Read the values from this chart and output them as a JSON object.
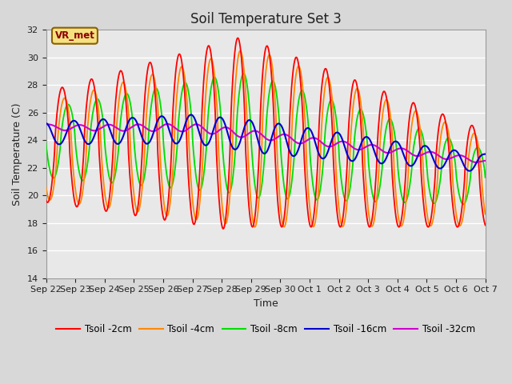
{
  "title": "Soil Temperature Set 3",
  "xlabel": "Time",
  "ylabel": "Soil Temperature (C)",
  "ylim": [
    14,
    32
  ],
  "yticks": [
    14,
    16,
    18,
    20,
    22,
    24,
    26,
    28,
    30,
    32
  ],
  "annotation": "VR_met",
  "series_colors": {
    "2cm": "#ff0000",
    "4cm": "#ff8800",
    "8cm": "#00dd00",
    "16cm": "#0000cc",
    "32cm": "#cc00cc"
  },
  "legend_labels": [
    "Tsoil -2cm",
    "Tsoil -4cm",
    "Tsoil -8cm",
    "Tsoil -16cm",
    "Tsoil -32cm"
  ],
  "x_tick_labels": [
    "Sep 22",
    "Sep 23",
    "Sep 24",
    "Sep 25",
    "Sep 26",
    "Sep 27",
    "Sep 28",
    "Sep 29",
    "Sep 30",
    "Oct 1",
    "Oct 2",
    "Oct 3",
    "Oct 4",
    "Oct 5",
    "Oct 6",
    "Oct 7"
  ],
  "n_points": 720
}
